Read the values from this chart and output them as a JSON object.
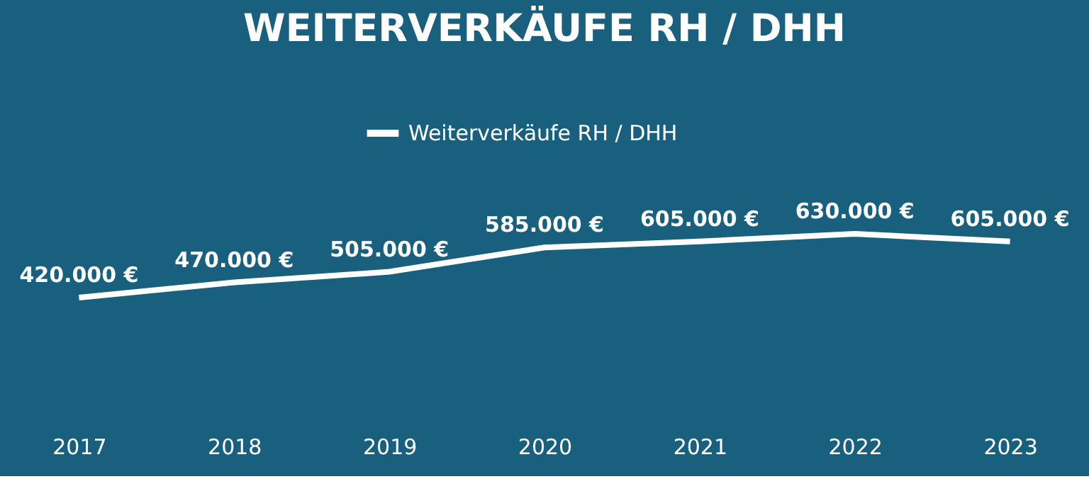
{
  "chart_data": {
    "type": "line",
    "title": "WEITERVERKÄUFE RH / DHH",
    "categories": [
      "2017",
      "2018",
      "2019",
      "2020",
      "2021",
      "2022",
      "2023"
    ],
    "series": [
      {
        "name": "Weiterverkäufe RH / DHH",
        "color": "#ffffff",
        "values": [
          420000,
          470000,
          505000,
          585000,
          605000,
          630000,
          605000
        ],
        "value_labels": [
          "420.000 €",
          "470.000 €",
          "505.000 €",
          "585.000 €",
          "605.000 €",
          "630.000 €",
          "605.000 €"
        ]
      }
    ],
    "legend": "top",
    "marker": "none",
    "line_style": "solid",
    "grid": false
  }
}
